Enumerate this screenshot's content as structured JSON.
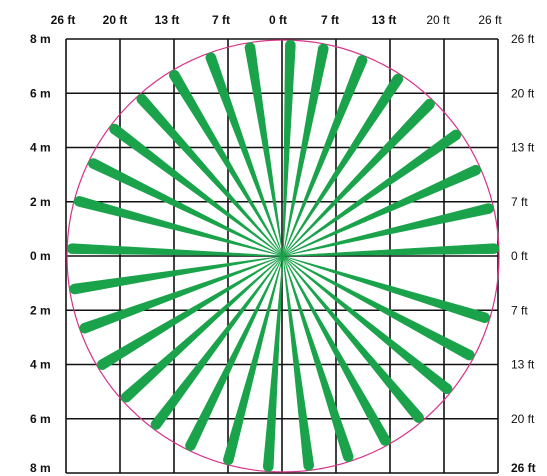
{
  "top_labels": [
    {
      "text": "26 ft",
      "bold": true
    },
    {
      "text": "20 ft",
      "bold": true
    },
    {
      "text": "13 ft",
      "bold": true
    },
    {
      "text": "7 ft",
      "bold": true
    },
    {
      "text": "0 ft",
      "bold": true
    },
    {
      "text": "7 ft",
      "bold": true
    },
    {
      "text": "13 ft",
      "bold": true
    },
    {
      "text": "20 ft",
      "bold": false
    },
    {
      "text": "26 ft",
      "bold": false
    }
  ],
  "left_labels": [
    "8 m",
    "6 m",
    "4 m",
    "2 m",
    "0 m",
    "2 m",
    "4 m",
    "6 m",
    "8 m"
  ],
  "right_labels": [
    {
      "text": "26 ft",
      "bold": false
    },
    {
      "text": "20 ft",
      "bold": false
    },
    {
      "text": "13 ft",
      "bold": false
    },
    {
      "text": "7 ft",
      "bold": false
    },
    {
      "text": "0 ft",
      "bold": false
    },
    {
      "text": "7 ft",
      "bold": false
    },
    {
      "text": "13 ft",
      "bold": false
    },
    {
      "text": "20 ft",
      "bold": false
    },
    {
      "text": "26 ft",
      "bold": true
    }
  ],
  "colors": {
    "beam": "#1aa34a",
    "circle": "#d6338a",
    "grid": "#111111"
  },
  "chart_data": {
    "type": "radial coverage pattern",
    "grid": true,
    "beam_count": 32,
    "beam_angles_deg": [
      2,
      13,
      24,
      35,
      46,
      57,
      68,
      79,
      88,
      99,
      110,
      121,
      132,
      143,
      154,
      165,
      178,
      189,
      200,
      211,
      222,
      233,
      244,
      255,
      266,
      277,
      288,
      299,
      310,
      321,
      332,
      343
    ]
  }
}
